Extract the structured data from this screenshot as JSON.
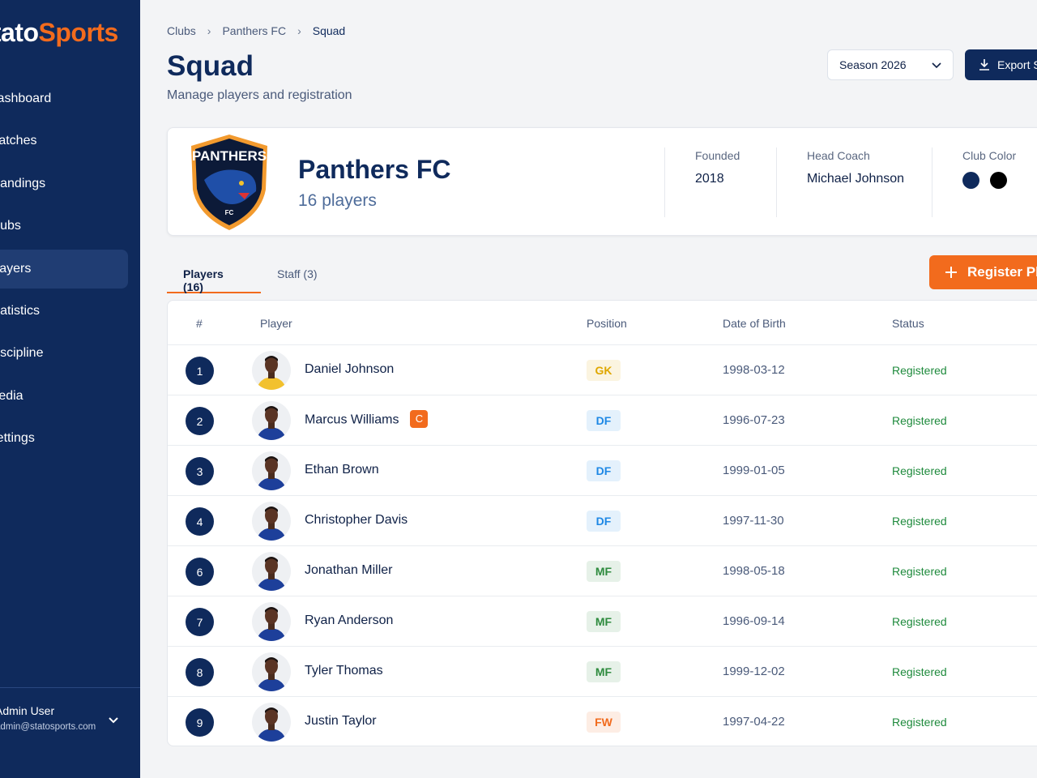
{
  "sidebar": {
    "brand": {
      "first": "Stato",
      "second": "Sports"
    },
    "nav": [
      "Dashboard",
      "Matches",
      "Standings",
      "Clubs",
      "Players",
      "Statistics",
      "Discipline",
      "Media",
      "Settings"
    ],
    "user": {
      "name": "Admin User",
      "email": "admin@statosports.com"
    }
  },
  "breadcrumb": [
    "Clubs",
    "Panthers FC",
    "Squad"
  ],
  "header": {
    "title": "Squad",
    "subtitle": "Manage players and registration",
    "season": "Season 2026",
    "export": "Export Squad"
  },
  "club": {
    "logo_text": "PANTHERS",
    "logo_sub": "FC",
    "name": "Panthers FC",
    "count": "16 players",
    "founded_label": "Founded",
    "founded": "2018",
    "coach_label": "Head Coach",
    "coach": "Michael Johnson",
    "color_label": "Club Color",
    "colors": [
      "#0f2a5c",
      "#000000"
    ]
  },
  "tabs": [
    "Players (16)",
    "Staff (3)"
  ],
  "register": "Register Player",
  "table": {
    "columns": [
      "#",
      "Player",
      "Position",
      "Date of Birth",
      "Status"
    ],
    "rows": [
      {
        "number": 1,
        "name": "Daniel Johnson",
        "position": "GK",
        "dob": "1998-03-12",
        "status": "Registered",
        "kit": "#f2c12e",
        "badge_color": "#e0a800"
      },
      {
        "number": 2,
        "name": "Marcus Williams",
        "captain": "C",
        "position": "DF",
        "dob": "1996-07-23",
        "status": "Registered",
        "kit": "#1d3f9a",
        "badge_color": "#1e88e5"
      },
      {
        "number": 3,
        "name": "Ethan Brown",
        "position": "DF",
        "dob": "1999-01-05",
        "status": "Registered",
        "kit": "#1d3f9a",
        "badge_color": "#1e88e5"
      },
      {
        "number": 4,
        "name": "Christopher Davis",
        "position": "DF",
        "dob": "1997-11-30",
        "status": "Registered",
        "kit": "#1d3f9a",
        "badge_color": "#1e88e5"
      },
      {
        "number": 6,
        "name": "Jonathan Miller",
        "position": "MF",
        "dob": "1998-05-18",
        "status": "Registered",
        "kit": "#1d3f9a",
        "badge_color": "#2e8b3e"
      },
      {
        "number": 7,
        "name": "Ryan Anderson",
        "position": "MF",
        "dob": "1996-09-14",
        "status": "Registered",
        "kit": "#1d3f9a",
        "badge_color": "#2e8b3e"
      },
      {
        "number": 8,
        "name": "Tyler Thomas",
        "position": "MF",
        "dob": "1999-12-02",
        "status": "Registered",
        "kit": "#1d3f9a",
        "badge_color": "#2e8b3e"
      },
      {
        "number": 9,
        "name": "Justin Taylor",
        "position": "FW",
        "dob": "1997-04-22",
        "status": "Registered",
        "kit": "#1d3f9a",
        "badge_color": "#f26b1d"
      }
    ]
  }
}
